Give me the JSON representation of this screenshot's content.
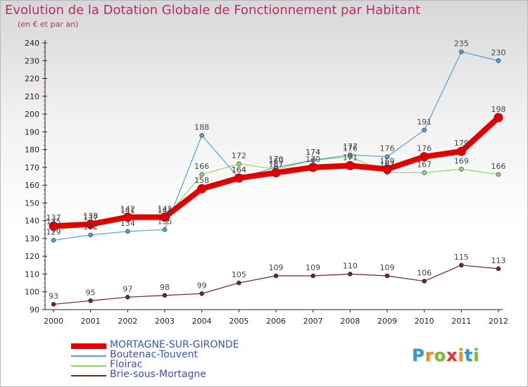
{
  "title": "Evolution de la Dotation Globale de Fonctionnement par Habitant",
  "subtitle": "(en € et par an)",
  "logo": {
    "text": "Proxiti",
    "letters": [
      "P",
      "r",
      "o",
      "x",
      "i",
      "t",
      "i"
    ],
    "colors": [
      "#2e9ad6",
      "#f08a1c",
      "#7dbb2a",
      "#e2332b",
      "#f08a1c",
      "#2e9ad6",
      "#7dbb2a"
    ]
  },
  "colors": {
    "title": "#b0306a",
    "axis": "#222222",
    "label": "#444444"
  },
  "chart_data": {
    "type": "line",
    "title": "Evolution de la Dotation Globale de Fonctionnement par Habitant",
    "subtitle": "(en € et par an)",
    "xlabel": "",
    "ylabel": "",
    "x": [
      2000,
      2001,
      2002,
      2003,
      2004,
      2005,
      2006,
      2007,
      2008,
      2009,
      2010,
      2011,
      2012
    ],
    "ylim": [
      90,
      240
    ],
    "yticks": [
      90,
      100,
      110,
      120,
      130,
      140,
      150,
      160,
      170,
      180,
      190,
      200,
      210,
      220,
      230,
      240
    ],
    "grid": false,
    "legend_position": "bottom-left",
    "series": [
      {
        "name": "MORTAGNE-SUR-GIRONDE",
        "color": "#e20000",
        "legend_color": "#3a4fd8",
        "width": 8,
        "values": [
          137,
          138,
          142,
          142,
          158,
          164,
          167,
          170,
          171,
          169,
          176,
          179,
          198
        ]
      },
      {
        "name": "Boutenac-Touvent",
        "color": "#5b9bd5",
        "legend_color": "#3a4fd8",
        "width": 1.2,
        "values": [
          129,
          132,
          134,
          135,
          188,
          164,
          170,
          174,
          177,
          176,
          191,
          235,
          230
        ]
      },
      {
        "name": "Floirac",
        "color": "#8ed66a",
        "legend_color": "#3a4fd8",
        "width": 1.2,
        "values": [
          135,
          137,
          141,
          141,
          166,
          172,
          169,
          174,
          176,
          167,
          167,
          169,
          166
        ]
      },
      {
        "name": "Brie-sous-Mortagne",
        "color": "#7a2222",
        "legend_color": "#3a4fd8",
        "width": 1.2,
        "values": [
          93,
          95,
          97,
          98,
          99,
          105,
          109,
          109,
          110,
          109,
          106,
          115,
          113
        ]
      }
    ]
  }
}
